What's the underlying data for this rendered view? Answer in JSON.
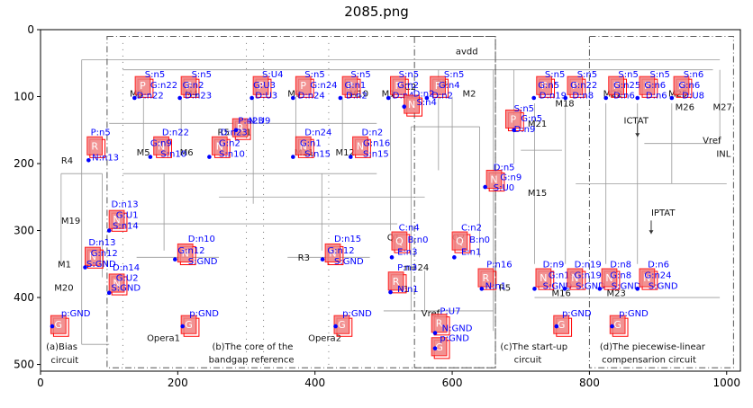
{
  "title": "2085.png",
  "axes": {
    "x_ticks": [
      "0",
      "200",
      "400",
      "600",
      "800",
      "1000"
    ],
    "y_ticks": [
      "0",
      "100",
      "200",
      "300",
      "400",
      "500"
    ],
    "xlim": [
      0,
      1020
    ],
    "ylim": [
      510,
      0
    ]
  },
  "colors": {
    "box_fill": "#f08080",
    "box_edge": "#ff0000",
    "label": "#0000ff",
    "letter": "#ffffff",
    "wire": "#999999",
    "frame": "#555555",
    "circuit_text": "#111111"
  },
  "circuit_labels": [
    {
      "text": "avdd",
      "x": 605,
      "y": 37
    },
    {
      "text": "M3",
      "x": 130,
      "y": 100
    },
    {
      "text": "M4",
      "x": 210,
      "y": 100
    },
    {
      "text": "M9",
      "x": 360,
      "y": 100
    },
    {
      "text": "M10",
      "x": 450,
      "y": 100
    },
    {
      "text": "M1",
      "x": 497,
      "y": 100
    },
    {
      "text": "C2",
      "x": 530,
      "y": 90
    },
    {
      "text": "C3",
      "x": 575,
      "y": 85
    },
    {
      "text": "M2",
      "x": 615,
      "y": 100
    },
    {
      "text": "M18",
      "x": 750,
      "y": 115
    },
    {
      "text": "M22",
      "x": 820,
      "y": 100
    },
    {
      "text": "M25",
      "x": 915,
      "y": 100
    },
    {
      "text": "M26",
      "x": 925,
      "y": 120
    },
    {
      "text": "M27",
      "x": 980,
      "y": 120
    },
    {
      "text": "ICTAT",
      "x": 850,
      "y": 140
    },
    {
      "text": "Vref",
      "x": 965,
      "y": 170
    },
    {
      "text": "INL",
      "x": 985,
      "y": 190
    },
    {
      "text": "R5",
      "x": 258,
      "y": 158
    },
    {
      "text": "C1",
      "x": 290,
      "y": 158
    },
    {
      "text": "R4",
      "x": 30,
      "y": 200
    },
    {
      "text": "M5",
      "x": 140,
      "y": 188
    },
    {
      "text": "M6",
      "x": 203,
      "y": 188
    },
    {
      "text": "M11",
      "x": 370,
      "y": 188
    },
    {
      "text": "M12",
      "x": 430,
      "y": 188
    },
    {
      "text": "M21",
      "x": 710,
      "y": 145
    },
    {
      "text": "M15",
      "x": 710,
      "y": 248
    },
    {
      "text": "M19",
      "x": 30,
      "y": 290
    },
    {
      "text": "IPTAT",
      "x": 890,
      "y": 278
    },
    {
      "text": "Q1",
      "x": 505,
      "y": 315
    },
    {
      "text": "Q2",
      "x": 600,
      "y": 315
    },
    {
      "text": "R3",
      "x": 375,
      "y": 345
    },
    {
      "text": "n=24",
      "x": 530,
      "y": 360
    },
    {
      "text": "R1",
      "x": 520,
      "y": 392
    },
    {
      "text": "R5",
      "x": 668,
      "y": 390
    },
    {
      "text": "M16",
      "x": 745,
      "y": 398
    },
    {
      "text": "M23",
      "x": 825,
      "y": 398
    },
    {
      "text": "M1",
      "x": 25,
      "y": 355
    },
    {
      "text": "M20",
      "x": 20,
      "y": 390
    },
    {
      "text": "Vref",
      "x": 555,
      "y": 428
    },
    {
      "text": "Opera1",
      "x": 155,
      "y": 465
    },
    {
      "text": "Opera2",
      "x": 390,
      "y": 465
    },
    {
      "text": "(a)Bias",
      "x": 8,
      "y": 478
    },
    {
      "text": "circuit",
      "x": 15,
      "y": 498
    },
    {
      "text": "(b)The core of the",
      "x": 250,
      "y": 478
    },
    {
      "text": "bandgap reference",
      "x": 245,
      "y": 497
    },
    {
      "text": "(c)The start-up",
      "x": 670,
      "y": 478
    },
    {
      "text": "circuit",
      "x": 690,
      "y": 497
    },
    {
      "text": "(d)The piecewise-linear",
      "x": 815,
      "y": 478
    },
    {
      "text": "compensarion circuit",
      "x": 818,
      "y": 497
    }
  ],
  "components": [
    {
      "letter": "P",
      "x": 138,
      "y": 70,
      "pin": [
        137,
        102
      ],
      "labels": [
        {
          "text": "S:n5",
          "x": 152,
          "y": 71
        },
        {
          "text": "D:n22",
          "x": 140,
          "y": 103
        }
      ]
    },
    {
      "letter": "P",
      "x": 205,
      "y": 70,
      "pin": [
        203,
        102
      ],
      "labels": [
        {
          "text": "G:n22",
          "x": 160,
          "y": 87
        },
        {
          "text": "S:n5",
          "x": 220,
          "y": 71
        },
        {
          "text": "G:n2",
          "x": 207,
          "y": 87
        },
        {
          "text": "D:n23",
          "x": 210,
          "y": 103
        }
      ]
    },
    {
      "letter": "P",
      "x": 310,
      "y": 70,
      "pin": [
        308,
        102
      ],
      "labels": [
        {
          "text": "S:U4",
          "x": 323,
          "y": 71
        },
        {
          "text": "G:U3",
          "x": 310,
          "y": 87
        },
        {
          "text": "D:U3",
          "x": 313,
          "y": 103
        }
      ]
    },
    {
      "letter": "P",
      "x": 372,
      "y": 70,
      "pin": [
        368,
        102
      ],
      "labels": [
        {
          "text": "S:n5",
          "x": 385,
          "y": 71
        },
        {
          "text": "G:n24",
          "x": 393,
          "y": 87
        },
        {
          "text": "D:n24",
          "x": 375,
          "y": 103
        }
      ]
    },
    {
      "letter": "P",
      "x": 440,
      "y": 70,
      "pin": [
        437,
        102
      ],
      "labels": [
        {
          "text": "S:n5",
          "x": 452,
          "y": 71
        },
        {
          "text": "G:n1",
          "x": 443,
          "y": 87
        },
        {
          "text": "D:n2",
          "x": 445,
          "y": 103
        }
      ]
    },
    {
      "letter": "P",
      "x": 510,
      "y": 70,
      "pin": [
        507,
        102
      ],
      "labels": [
        {
          "text": "S:n5",
          "x": 522,
          "y": 71
        },
        {
          "text": "G:n2",
          "x": 520,
          "y": 87
        },
        {
          "text": "D:n4",
          "x": 513,
          "y": 103
        }
      ]
    },
    {
      "letter": "P",
      "x": 568,
      "y": 70,
      "pin": [
        563,
        102
      ],
      "labels": [
        {
          "text": "S:n5",
          "x": 588,
          "y": 71
        },
        {
          "text": "G:n4",
          "x": 580,
          "y": 87
        },
        {
          "text": "D:n2",
          "x": 570,
          "y": 103
        }
      ]
    },
    {
      "letter": "P",
      "x": 723,
      "y": 70,
      "pin": [
        719,
        102
      ],
      "labels": [
        {
          "text": "S:n5",
          "x": 735,
          "y": 71
        },
        {
          "text": "G:n5",
          "x": 725,
          "y": 87
        },
        {
          "text": "D:n19",
          "x": 727,
          "y": 103
        }
      ]
    },
    {
      "letter": "P",
      "x": 768,
      "y": 70,
      "pin": [
        765,
        102
      ],
      "labels": [
        {
          "text": "S:n5",
          "x": 782,
          "y": 71
        },
        {
          "text": "G:n22",
          "x": 772,
          "y": 87
        },
        {
          "text": "D:n8",
          "x": 775,
          "y": 103
        }
      ]
    },
    {
      "letter": "P",
      "x": 828,
      "y": 70,
      "pin": [
        824,
        102
      ],
      "labels": [
        {
          "text": "S:n5",
          "x": 842,
          "y": 71
        },
        {
          "text": "G:n25",
          "x": 835,
          "y": 87
        },
        {
          "text": "D:n6",
          "x": 835,
          "y": 103
        }
      ]
    },
    {
      "letter": "P",
      "x": 873,
      "y": 70,
      "pin": [
        870,
        102
      ],
      "labels": [
        {
          "text": "S:n5",
          "x": 888,
          "y": 71
        },
        {
          "text": "G:n6",
          "x": 880,
          "y": 87
        },
        {
          "text": "D:n6",
          "x": 882,
          "y": 103
        }
      ]
    },
    {
      "letter": "P",
      "x": 923,
      "y": 70,
      "pin": [
        920,
        102
      ],
      "labels": [
        {
          "text": "S:n6",
          "x": 937,
          "y": 71
        },
        {
          "text": "G:n6",
          "x": 930,
          "y": 87
        },
        {
          "text": "D:U8",
          "x": 935,
          "y": 103
        }
      ]
    },
    {
      "letter": "R",
      "x": 280,
      "y": 133,
      "pin": [
        285,
        150
      ],
      "labels": [
        {
          "text": "P:n23",
          "x": 288,
          "y": 140
        },
        {
          "text": "N:U9",
          "x": 303,
          "y": 140
        }
      ]
    },
    {
      "letter": "N",
      "x": 530,
      "y": 98,
      "pin": [
        530,
        115
      ],
      "labels": [
        {
          "text": "D:n2",
          "x": 543,
          "y": 100
        },
        {
          "text": "S:n4",
          "x": 548,
          "y": 113
        }
      ]
    },
    {
      "letter": "R",
      "x": 68,
      "y": 160,
      "pin": [
        70,
        195
      ],
      "labels": [
        {
          "text": "P:n5",
          "x": 73,
          "y": 158
        },
        {
          "text": "N:n13",
          "x": 75,
          "y": 195
        }
      ]
    },
    {
      "letter": "N",
      "x": 165,
      "y": 160,
      "pin": [
        160,
        190
      ],
      "labels": [
        {
          "text": "D:n22",
          "x": 177,
          "y": 158
        },
        {
          "text": "G:n9",
          "x": 160,
          "y": 174
        },
        {
          "text": "S:n10",
          "x": 175,
          "y": 190
        }
      ]
    },
    {
      "letter": "N",
      "x": 250,
      "y": 160,
      "pin": [
        246,
        190
      ],
      "labels": [
        {
          "text": "D:n23",
          "x": 262,
          "y": 158
        },
        {
          "text": "G:n2",
          "x": 260,
          "y": 174
        },
        {
          "text": "S:n10",
          "x": 260,
          "y": 190
        }
      ]
    },
    {
      "letter": "N",
      "x": 372,
      "y": 160,
      "pin": [
        368,
        190
      ],
      "labels": [
        {
          "text": "D:n24",
          "x": 385,
          "y": 158
        },
        {
          "text": "G:n1",
          "x": 378,
          "y": 174
        },
        {
          "text": "S:n15",
          "x": 385,
          "y": 190
        }
      ]
    },
    {
      "letter": "N",
      "x": 455,
      "y": 160,
      "pin": [
        452,
        190
      ],
      "labels": [
        {
          "text": "D:n2",
          "x": 468,
          "y": 158
        },
        {
          "text": "G:n16",
          "x": 470,
          "y": 174
        },
        {
          "text": "S:n15",
          "x": 470,
          "y": 190
        }
      ]
    },
    {
      "letter": "P",
      "x": 678,
      "y": 120,
      "pin": [
        690,
        150
      ],
      "labels": [
        {
          "text": "S:n5",
          "x": 690,
          "y": 122
        },
        {
          "text": "G:n5",
          "x": 700,
          "y": 137
        },
        {
          "text": "D:n9",
          "x": 690,
          "y": 153
        }
      ]
    },
    {
      "letter": "N",
      "x": 650,
      "y": 210,
      "pin": [
        648,
        235
      ],
      "labels": [
        {
          "text": "D:n5",
          "x": 660,
          "y": 210
        },
        {
          "text": "G:n9",
          "x": 670,
          "y": 225
        },
        {
          "text": "S:U0",
          "x": 660,
          "y": 240
        }
      ]
    },
    {
      "letter": "N",
      "x": 100,
      "y": 270,
      "pin": [
        100,
        300
      ],
      "labels": [
        {
          "text": "D:n13",
          "x": 103,
          "y": 265
        },
        {
          "text": "G:U1",
          "x": 110,
          "y": 281
        },
        {
          "text": "S:n14",
          "x": 105,
          "y": 297
        }
      ]
    },
    {
      "letter": "N",
      "x": 65,
      "y": 325,
      "pin": [
        65,
        355
      ],
      "labels": [
        {
          "text": "D:n13",
          "x": 70,
          "y": 322
        },
        {
          "text": "G:n12",
          "x": 73,
          "y": 338
        },
        {
          "text": "S:GND",
          "x": 67,
          "y": 354
        }
      ]
    },
    {
      "letter": "N",
      "x": 100,
      "y": 365,
      "pin": [
        100,
        393
      ],
      "labels": [
        {
          "text": "D:n14",
          "x": 105,
          "y": 360
        },
        {
          "text": "G:U2",
          "x": 110,
          "y": 375
        },
        {
          "text": "S:GND",
          "x": 103,
          "y": 390
        }
      ]
    },
    {
      "letter": "N",
      "x": 200,
      "y": 320,
      "pin": [
        196,
        343
      ],
      "labels": [
        {
          "text": "D:n10",
          "x": 215,
          "y": 317
        },
        {
          "text": "G:n12",
          "x": 200,
          "y": 334
        },
        {
          "text": "S:GND",
          "x": 215,
          "y": 350
        }
      ]
    },
    {
      "letter": "N",
      "x": 415,
      "y": 320,
      "pin": [
        411,
        343
      ],
      "labels": [
        {
          "text": "D:n15",
          "x": 428,
          "y": 317
        },
        {
          "text": "G:n12",
          "x": 418,
          "y": 334
        },
        {
          "text": "S:GND",
          "x": 428,
          "y": 350
        }
      ]
    },
    {
      "letter": "Q",
      "x": 512,
      "y": 302,
      "pin": [
        512,
        340
      ],
      "labels": [
        {
          "text": "C:n4",
          "x": 522,
          "y": 300
        },
        {
          "text": "B:n0",
          "x": 535,
          "y": 318
        },
        {
          "text": "E:n3",
          "x": 520,
          "y": 336
        }
      ]
    },
    {
      "letter": "Q",
      "x": 600,
      "y": 302,
      "pin": [
        603,
        340
      ],
      "labels": [
        {
          "text": "C:n2",
          "x": 613,
          "y": 300
        },
        {
          "text": "B:n0",
          "x": 625,
          "y": 318
        },
        {
          "text": "E:n1",
          "x": 613,
          "y": 336
        }
      ]
    },
    {
      "letter": "R",
      "x": 507,
      "y": 362,
      "pin": [
        510,
        392
      ],
      "labels": [
        {
          "text": "P:n3",
          "x": 520,
          "y": 360
        },
        {
          "text": "N:n1",
          "x": 520,
          "y": 392
        }
      ]
    },
    {
      "letter": "R",
      "x": 638,
      "y": 357,
      "pin": [
        643,
        387
      ],
      "labels": [
        {
          "text": "P:n16",
          "x": 650,
          "y": 355
        },
        {
          "text": "N:n1",
          "x": 648,
          "y": 387
        }
      ]
    },
    {
      "letter": "N",
      "x": 722,
      "y": 357,
      "pin": [
        720,
        387
      ],
      "labels": [
        {
          "text": "D:n9",
          "x": 732,
          "y": 355
        },
        {
          "text": "G:n19",
          "x": 740,
          "y": 371
        },
        {
          "text": "S:GND",
          "x": 732,
          "y": 387
        }
      ]
    },
    {
      "letter": "N",
      "x": 768,
      "y": 357,
      "pin": [
        764,
        387
      ],
      "labels": [
        {
          "text": "D:n19",
          "x": 778,
          "y": 355
        },
        {
          "text": "G:n19",
          "x": 778,
          "y": 371
        },
        {
          "text": "S:GND",
          "x": 780,
          "y": 387
        }
      ]
    },
    {
      "letter": "N",
      "x": 818,
      "y": 357,
      "pin": [
        815,
        387
      ],
      "labels": [
        {
          "text": "D:n8",
          "x": 830,
          "y": 355
        },
        {
          "text": "G:n8",
          "x": 830,
          "y": 371
        },
        {
          "text": "S:GND",
          "x": 832,
          "y": 387
        }
      ]
    },
    {
      "letter": "N",
      "x": 873,
      "y": 357,
      "pin": [
        870,
        387
      ],
      "labels": [
        {
          "text": "D:n6",
          "x": 885,
          "y": 355
        },
        {
          "text": "G:n24",
          "x": 880,
          "y": 371
        },
        {
          "text": "S:GND",
          "x": 886,
          "y": 387
        }
      ]
    },
    {
      "letter": "G",
      "x": 15,
      "y": 427,
      "pin": [
        17,
        443
      ],
      "labels": [
        {
          "text": "p:GND",
          "x": 30,
          "y": 428
        }
      ]
    },
    {
      "letter": "G",
      "x": 205,
      "y": 427,
      "pin": [
        207,
        443
      ],
      "labels": [
        {
          "text": "p:GND",
          "x": 217,
          "y": 428
        }
      ]
    },
    {
      "letter": "G",
      "x": 428,
      "y": 427,
      "pin": [
        430,
        443
      ],
      "labels": [
        {
          "text": "p:GND",
          "x": 440,
          "y": 428
        }
      ]
    },
    {
      "letter": "R",
      "x": 570,
      "y": 425,
      "pin": [
        575,
        453
      ],
      "labels": [
        {
          "text": "P:U7",
          "x": 582,
          "y": 425
        },
        {
          "text": "N:GND",
          "x": 585,
          "y": 450
        }
      ]
    },
    {
      "letter": "G",
      "x": 570,
      "y": 460,
      "pin": [
        575,
        476
      ],
      "labels": [
        {
          "text": "p:GND",
          "x": 582,
          "y": 465
        }
      ]
    },
    {
      "letter": "G",
      "x": 748,
      "y": 427,
      "pin": [
        752,
        443
      ],
      "labels": [
        {
          "text": "p:GND",
          "x": 760,
          "y": 428
        }
      ]
    },
    {
      "letter": "G",
      "x": 830,
      "y": 427,
      "pin": [
        833,
        443
      ],
      "labels": [
        {
          "text": "p:GND",
          "x": 843,
          "y": 428
        }
      ]
    }
  ]
}
